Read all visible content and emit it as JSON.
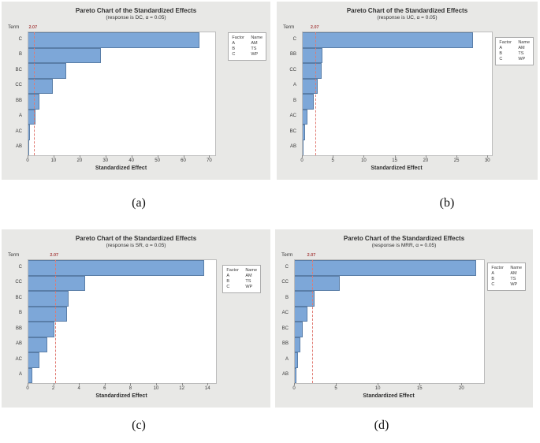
{
  "figure": {
    "captions": [
      "(a)",
      "(b)",
      "(c)",
      "(d)"
    ]
  },
  "colors": {
    "bar_fill": "#7da7d8",
    "bar_border": "#5a7ea8",
    "panel_background": "#e8e8e6",
    "plot_background": "#ffffff",
    "reference_line": "#e07a72",
    "reference_label": "#a84444",
    "text": "#2f2f2f"
  },
  "chart_data": [
    {
      "type": "bar",
      "orientation": "horizontal",
      "title": "Pareto Chart of the Standardized Effects",
      "subtitle": "(response is DC, α = 0.05)",
      "response": "DC",
      "alpha": "0.05",
      "term_label": "Term",
      "xlabel": "Standardized Effect",
      "categories": [
        "C",
        "B",
        "BC",
        "CC",
        "BB",
        "A",
        "AC",
        "AB"
      ],
      "values": [
        66,
        28,
        14.5,
        9.3,
        4.3,
        2.6,
        0.7,
        0.2
      ],
      "reference_value": 2.07,
      "reference_label": "2.07",
      "x_ticks": [
        0,
        10,
        20,
        30,
        40,
        50,
        60,
        70
      ],
      "xlim": [
        0,
        72
      ],
      "grid": false,
      "legend": {
        "position": "right",
        "headers": [
          "Factor",
          "Name"
        ],
        "rows": [
          [
            "A",
            "AM"
          ],
          [
            "B",
            "TS"
          ],
          [
            "C",
            "WP"
          ]
        ]
      },
      "caption": "(a)"
    },
    {
      "type": "bar",
      "orientation": "horizontal",
      "title": "Pareto Chart of the Standardized Effects",
      "subtitle": "(response is UC, α = 0.05)",
      "response": "UC",
      "alpha": "0.05",
      "term_label": "Term",
      "xlabel": "Standardized Effect",
      "categories": [
        "C",
        "BB",
        "CC",
        "A",
        "B",
        "AC",
        "BC",
        "AB"
      ],
      "values": [
        27.5,
        3.2,
        3.1,
        2.4,
        1.8,
        0.8,
        0.35,
        0.15
      ],
      "reference_value": 2.07,
      "reference_label": "2.07",
      "x_ticks": [
        0,
        5,
        10,
        15,
        20,
        25,
        30
      ],
      "xlim": [
        0,
        30.6
      ],
      "grid": false,
      "legend": {
        "position": "right",
        "headers": [
          "Factor",
          "Name"
        ],
        "rows": [
          [
            "A",
            "AM"
          ],
          [
            "B",
            "TS"
          ],
          [
            "C",
            "WP"
          ]
        ]
      },
      "caption": "(b)"
    },
    {
      "type": "bar",
      "orientation": "horizontal",
      "title": "Pareto Chart of the Standardized Effects",
      "subtitle": "(response is SR, α = 0.05)",
      "response": "SR",
      "alpha": "0.05",
      "term_label": "Term",
      "xlabel": "Standardized Effect",
      "categories": [
        "C",
        "CC",
        "BC",
        "B",
        "BB",
        "AB",
        "AC",
        "A"
      ],
      "values": [
        13.7,
        4.4,
        3.15,
        3.0,
        2.0,
        1.45,
        0.85,
        0.3
      ],
      "reference_value": 2.07,
      "reference_label": "2.07",
      "x_ticks": [
        0,
        2,
        4,
        6,
        8,
        10,
        12,
        14
      ],
      "xlim": [
        0,
        14.6
      ],
      "grid": false,
      "legend": {
        "position": "right",
        "headers": [
          "Factor",
          "Name"
        ],
        "rows": [
          [
            "A",
            "AM"
          ],
          [
            "B",
            "TS"
          ],
          [
            "C",
            "WP"
          ]
        ]
      },
      "caption": "(c)"
    },
    {
      "type": "bar",
      "orientation": "horizontal",
      "title": "Pareto Chart of the Standardized Effects",
      "subtitle": "(response is MRR, α = 0.05)",
      "response": "MRR",
      "alpha": "0.05",
      "term_label": "Term",
      "xlabel": "Standardized Effect",
      "categories": [
        "C",
        "CC",
        "B",
        "AC",
        "BC",
        "BB",
        "A",
        "AB"
      ],
      "values": [
        21.7,
        5.4,
        2.4,
        1.5,
        0.9,
        0.7,
        0.38,
        0.15
      ],
      "reference_value": 2.07,
      "reference_label": "2.07",
      "x_ticks": [
        0,
        5,
        10,
        15,
        20
      ],
      "xlim": [
        0,
        22.6
      ],
      "grid": false,
      "legend": {
        "position": "right",
        "headers": [
          "Factor",
          "Name"
        ],
        "rows": [
          [
            "A",
            "AM"
          ],
          [
            "B",
            "TS"
          ],
          [
            "C",
            "WP"
          ]
        ]
      },
      "caption": "(d)"
    }
  ]
}
